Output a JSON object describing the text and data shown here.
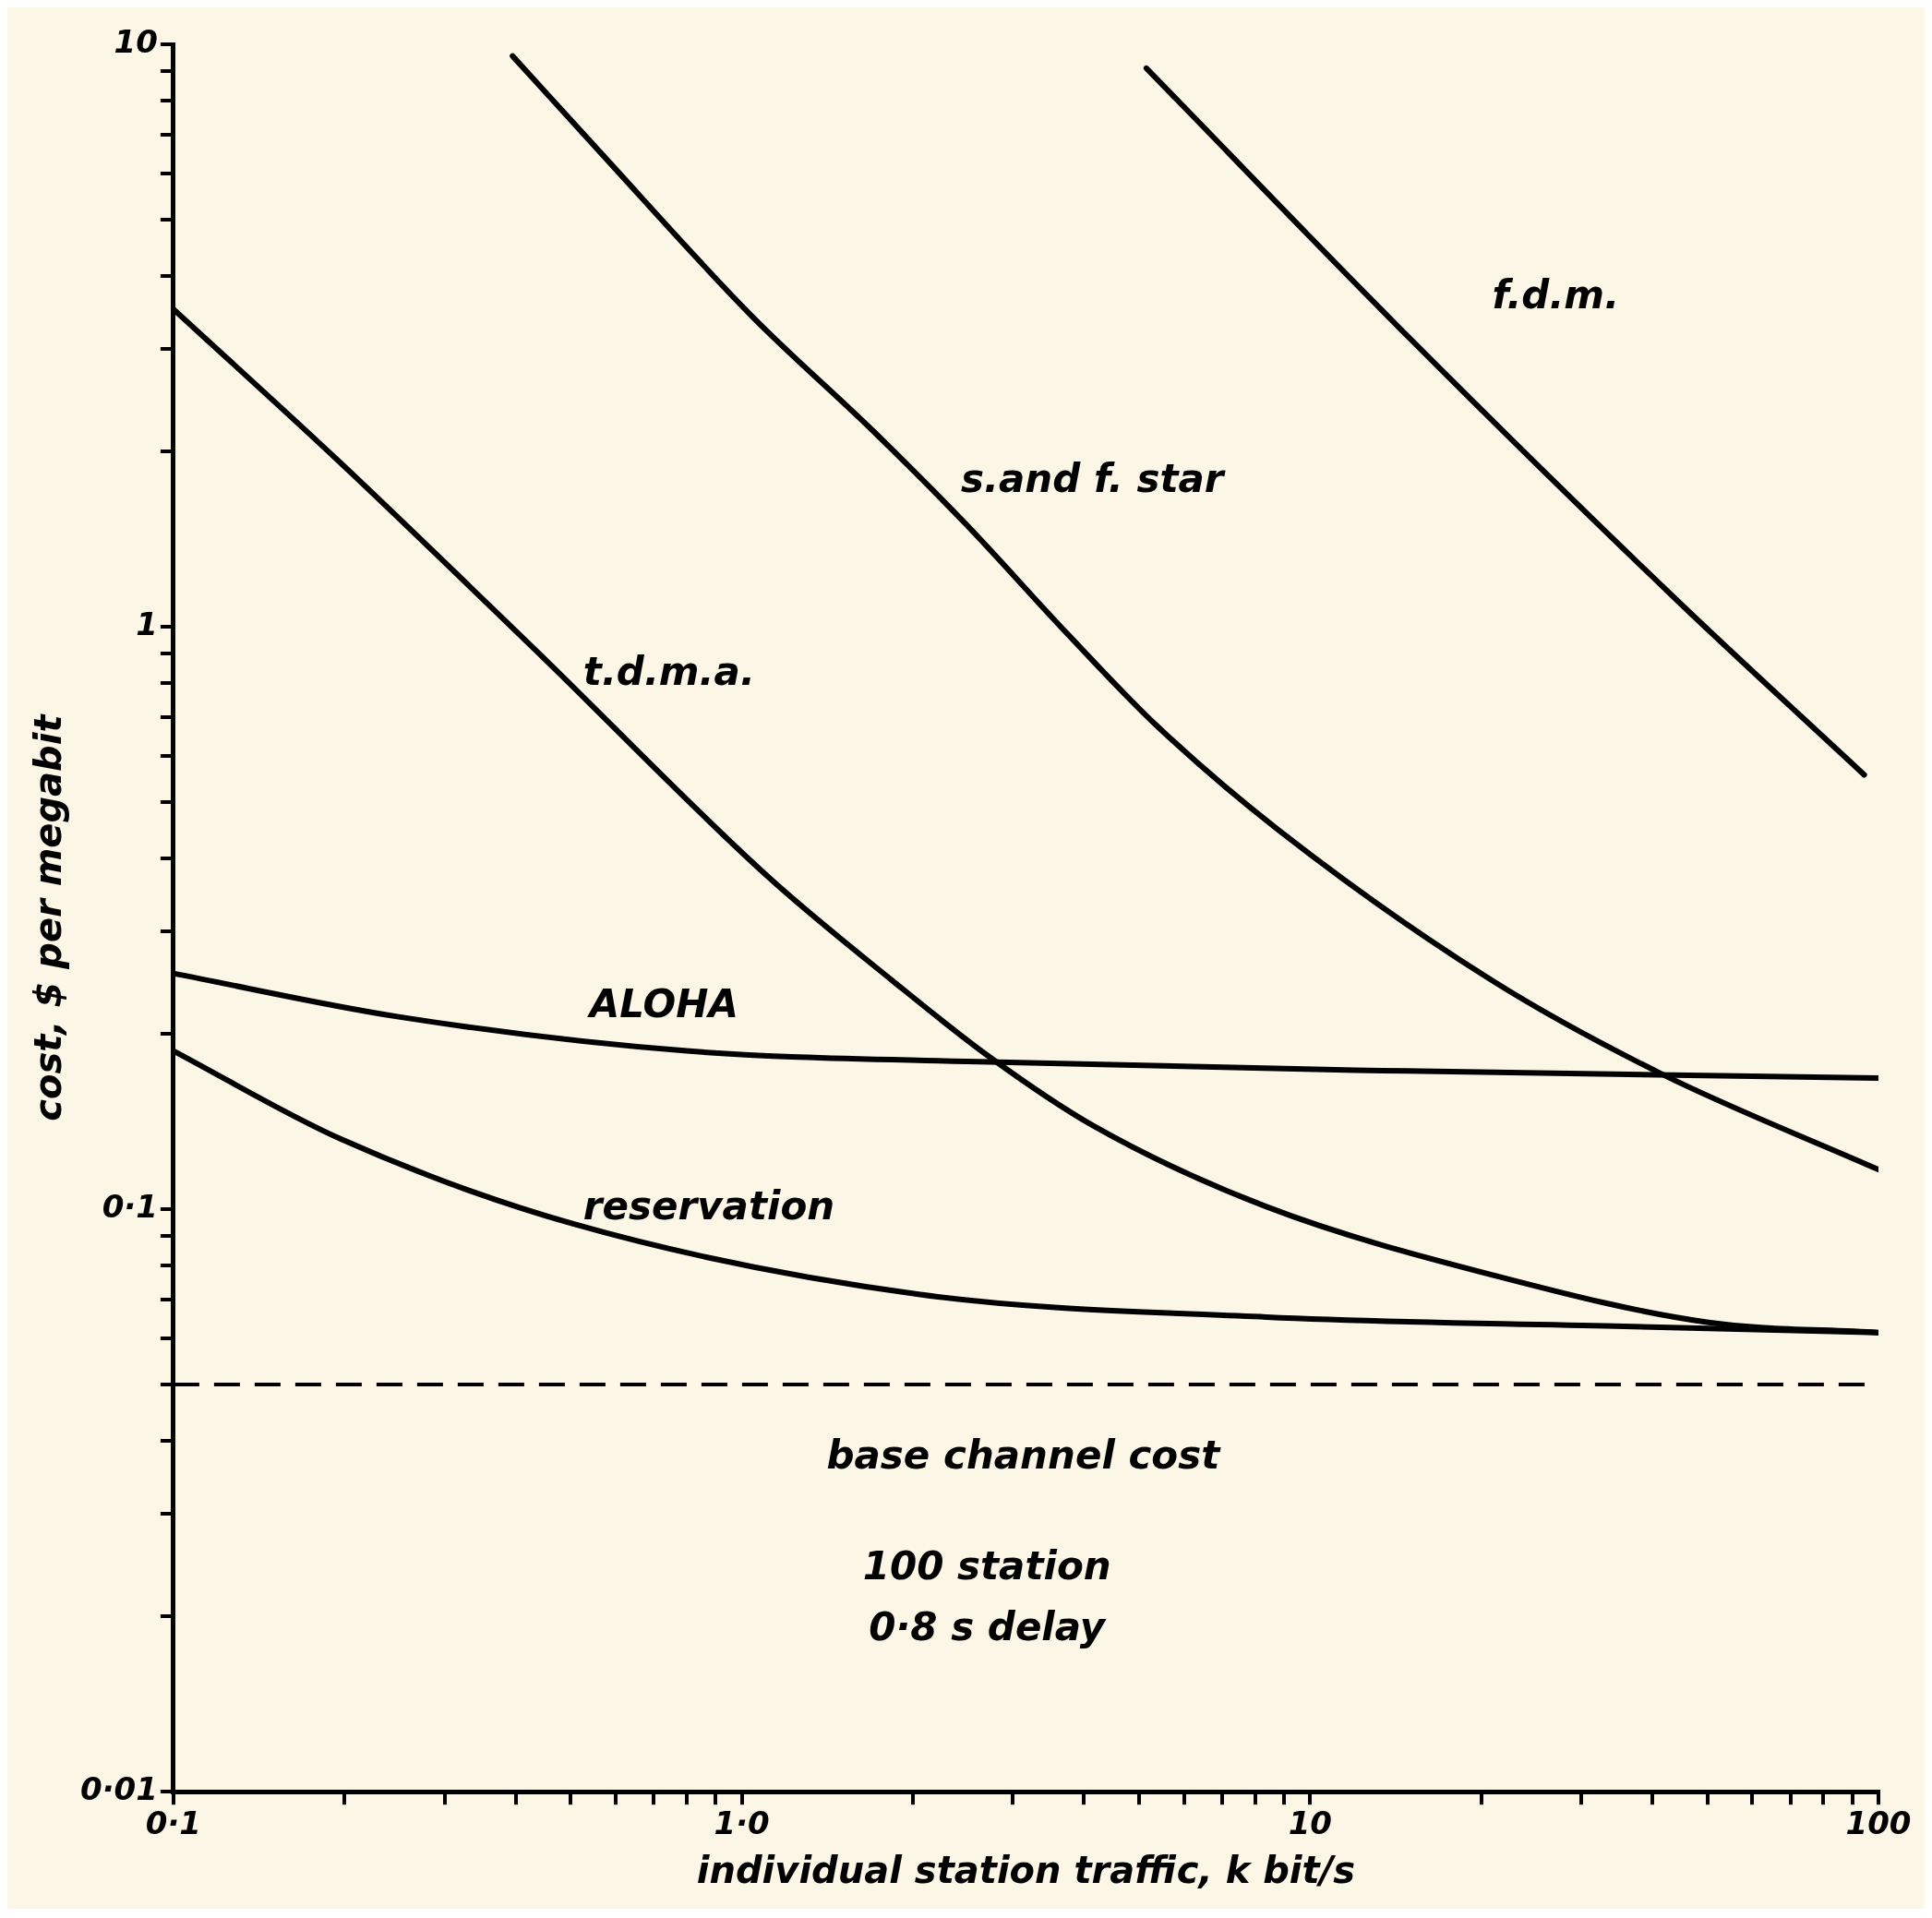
{
  "chart_data": {
    "type": "line",
    "xlabel": "individual station traffic, k bit/s",
    "ylabel": "cost, $ per megabit",
    "log": "xy",
    "grid": false,
    "legend": false,
    "marker": "none",
    "line_style": "solid",
    "xlim": [
      0.1,
      100
    ],
    "ylim": [
      0.01,
      10
    ],
    "xticks": [
      {
        "value": 0.1,
        "label": "0·1"
      },
      {
        "value": 0.2,
        "label": null
      },
      {
        "value": 0.3,
        "label": null
      },
      {
        "value": 0.4,
        "label": null
      },
      {
        "value": 0.5,
        "label": null
      },
      {
        "value": 0.6,
        "label": null
      },
      {
        "value": 0.7,
        "label": null
      },
      {
        "value": 0.8,
        "label": null
      },
      {
        "value": 0.9,
        "label": null
      },
      {
        "value": 1,
        "label": "1·0"
      },
      {
        "value": 2,
        "label": null
      },
      {
        "value": 3,
        "label": null
      },
      {
        "value": 4,
        "label": null
      },
      {
        "value": 5,
        "label": null
      },
      {
        "value": 6,
        "label": null
      },
      {
        "value": 7,
        "label": null
      },
      {
        "value": 8,
        "label": null
      },
      {
        "value": 9,
        "label": null
      },
      10,
      {
        "value": 20,
        "label": null
      },
      {
        "value": 30,
        "label": null
      },
      {
        "value": 40,
        "label": null
      },
      {
        "value": 50,
        "label": null
      },
      {
        "value": 60,
        "label": null
      },
      {
        "value": 70,
        "label": null
      },
      {
        "value": 80,
        "label": null
      },
      {
        "value": 90,
        "label": null
      },
      100
    ],
    "yticks": [
      {
        "value": 0.01,
        "label": "0·01"
      },
      {
        "value": 0.02,
        "label": null
      },
      {
        "value": 0.03,
        "label": null
      },
      {
        "value": 0.04,
        "label": null
      },
      {
        "value": 0.05,
        "label": null
      },
      {
        "value": 0.06,
        "label": null
      },
      {
        "value": 0.07,
        "label": null
      },
      {
        "value": 0.08,
        "label": null
      },
      {
        "value": 0.09,
        "label": null
      },
      {
        "value": 0.1,
        "label": "0·1"
      },
      {
        "value": 0.2,
        "label": null
      },
      {
        "value": 0.3,
        "label": null
      },
      {
        "value": 0.4,
        "label": null
      },
      {
        "value": 0.5,
        "label": null
      },
      {
        "value": 0.6,
        "label": null
      },
      {
        "value": 0.7,
        "label": null
      },
      {
        "value": 0.8,
        "label": null
      },
      {
        "value": 0.9,
        "label": null
      },
      1,
      {
        "value": 2,
        "label": null
      },
      {
        "value": 3,
        "label": null
      },
      {
        "value": 4,
        "label": null
      },
      {
        "value": 5,
        "label": null
      },
      {
        "value": 6,
        "label": null
      },
      {
        "value": 7,
        "label": null
      },
      {
        "value": 8,
        "label": null
      },
      {
        "value": 9,
        "label": null
      },
      10
    ],
    "series": [
      {
        "name": "f.d.m.",
        "color": "#000000",
        "x": [
          5.15,
          14.4,
          43.8,
          94.4
        ],
        "values": [
          9.1,
          3.25,
          1.12,
          0.557
        ]
      },
      {
        "name": "s.and f. star",
        "color": "#000000",
        "x": [
          0.395,
          0.56,
          1.04,
          1.71,
          2.48,
          3.75,
          5.34,
          8.79,
          20.9,
          41.4,
          100
        ],
        "values": [
          9.55,
          6.57,
          3.42,
          2.16,
          1.5,
          0.97,
          0.68,
          0.448,
          0.247,
          0.171,
          0.117
        ]
      },
      {
        "name": "t.d.m.a.",
        "color": "#000000",
        "x": [
          0.1,
          0.197,
          0.437,
          1.12,
          1.84,
          2.72,
          4.16,
          8.38,
          21.4,
          49.9,
          100
        ],
        "values": [
          3.51,
          1.91,
          0.905,
          0.37,
          0.247,
          0.183,
          0.139,
          0.101,
          0.0767,
          0.064,
          0.0614
        ]
      },
      {
        "name": "ALOHA",
        "color": "#000000",
        "x": [
          0.1,
          0.249,
          0.8,
          2.72,
          13.4,
          100
        ],
        "values": [
          0.254,
          0.214,
          0.187,
          0.179,
          0.173,
          0.168
        ]
      },
      {
        "name": "reservation",
        "color": "#000000",
        "x": [
          0.1,
          0.197,
          0.505,
          2.06,
          8.38,
          34.4,
          100
        ],
        "values": [
          0.187,
          0.132,
          0.0944,
          0.0714,
          0.0653,
          0.063,
          0.0614
        ]
      }
    ],
    "ref_lines": [
      {
        "axis": "y",
        "value": 0.05,
        "label": "base channel cost",
        "color": "#000000",
        "line_style": "dashed"
      }
    ],
    "annotations": [
      "100 station",
      "0·8 s delay"
    ]
  }
}
